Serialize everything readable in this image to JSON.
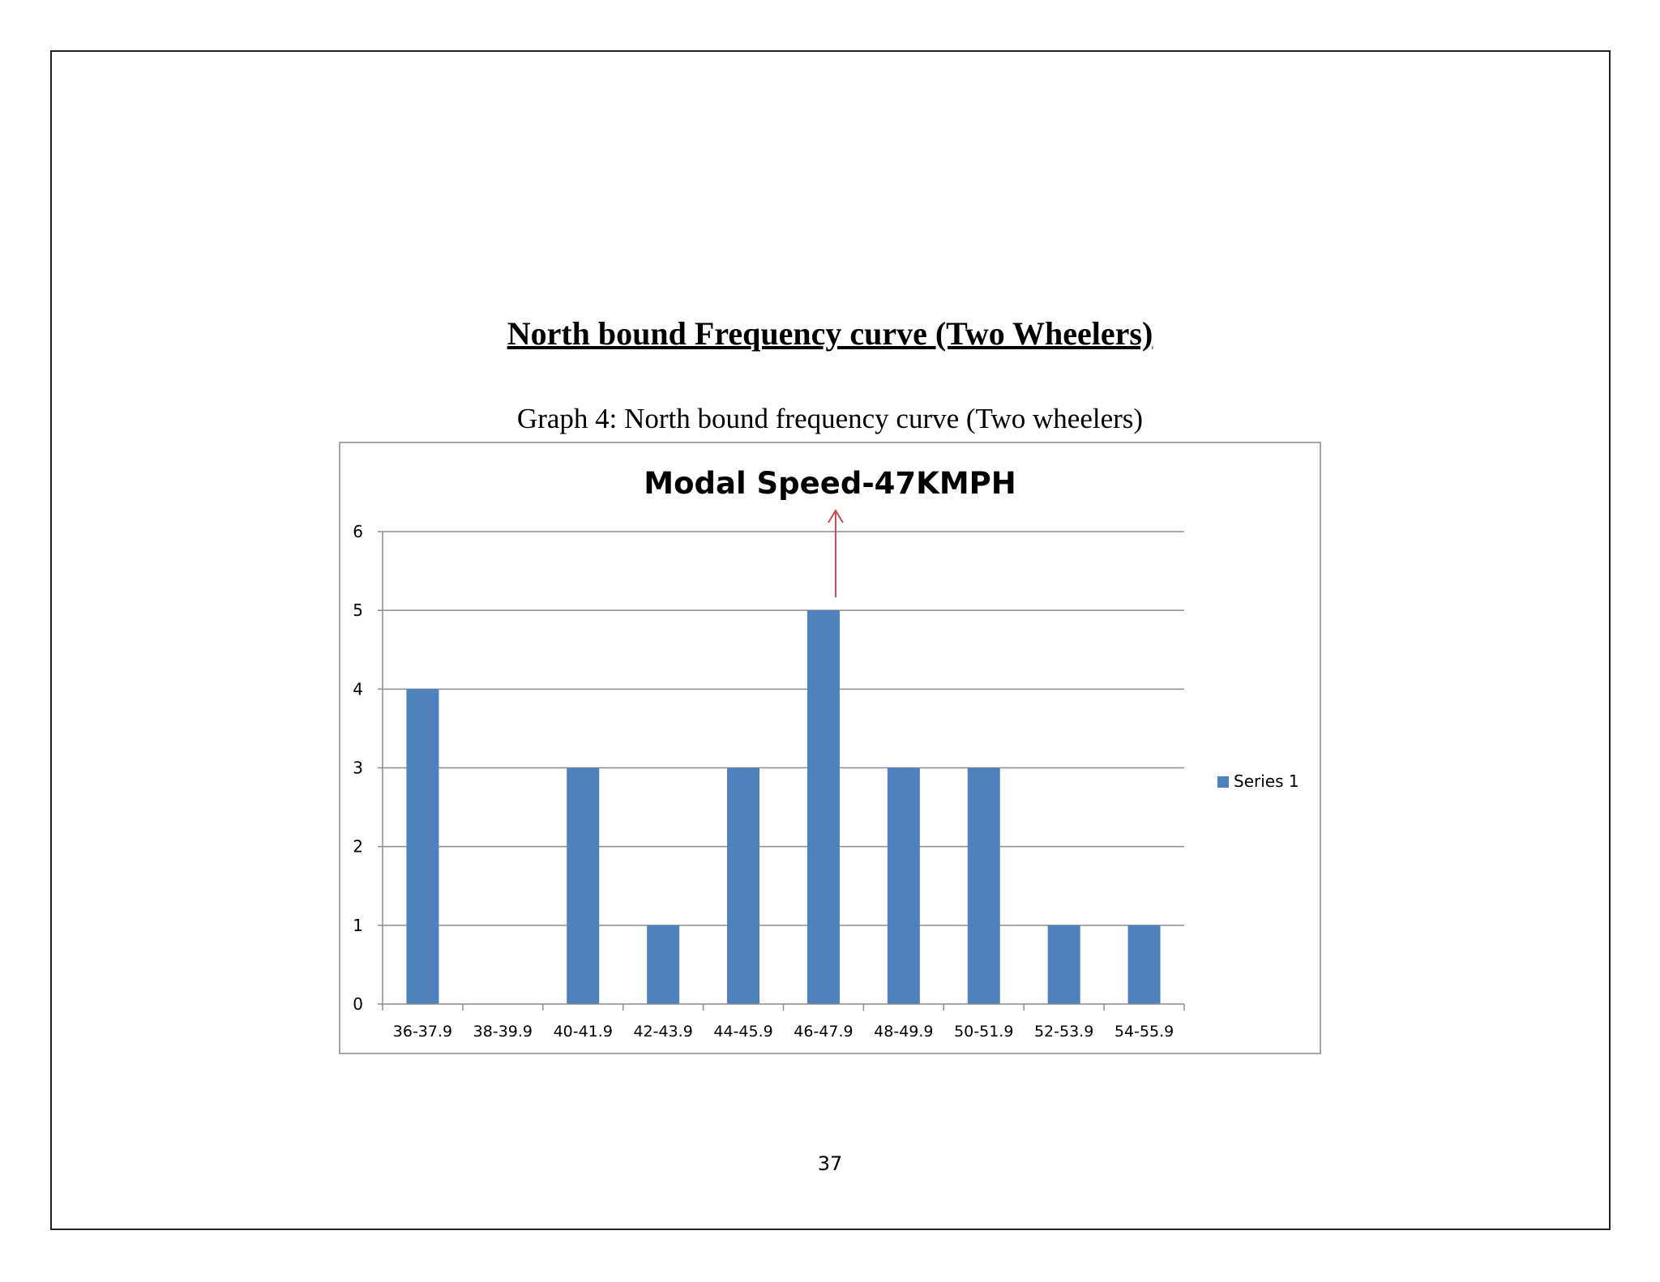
{
  "page": {
    "heading": "North bound Frequency curve (Two Wheelers)",
    "caption": "Graph 4: North bound frequency curve (Two wheelers)",
    "page_number": "37"
  },
  "colors": {
    "bar": "#4f81bd",
    "grid": "#8c8c8c",
    "annotation_arrow": "#c0504d",
    "frame": "#a6a6a6"
  },
  "chart_data": {
    "type": "bar",
    "title": "Modal Speed-47KMPH",
    "xlabel": "",
    "ylabel": "",
    "categories": [
      "36-37.9",
      "38-39.9",
      "40-41.9",
      "42-43.9",
      "44-45.9",
      "46-47.9",
      "48-49.9",
      "50-51.9",
      "52-53.9",
      "54-55.9"
    ],
    "series": [
      {
        "name": "Series 1",
        "values": [
          4,
          0,
          3,
          1,
          3,
          5,
          3,
          3,
          1,
          1
        ]
      }
    ],
    "ylim": [
      0,
      6
    ],
    "yticks": [
      0,
      1,
      2,
      3,
      4,
      5,
      6
    ],
    "grid": true,
    "legend_position": "right",
    "annotation": {
      "type": "arrow",
      "category": "46-47.9",
      "points_to": "title"
    }
  }
}
